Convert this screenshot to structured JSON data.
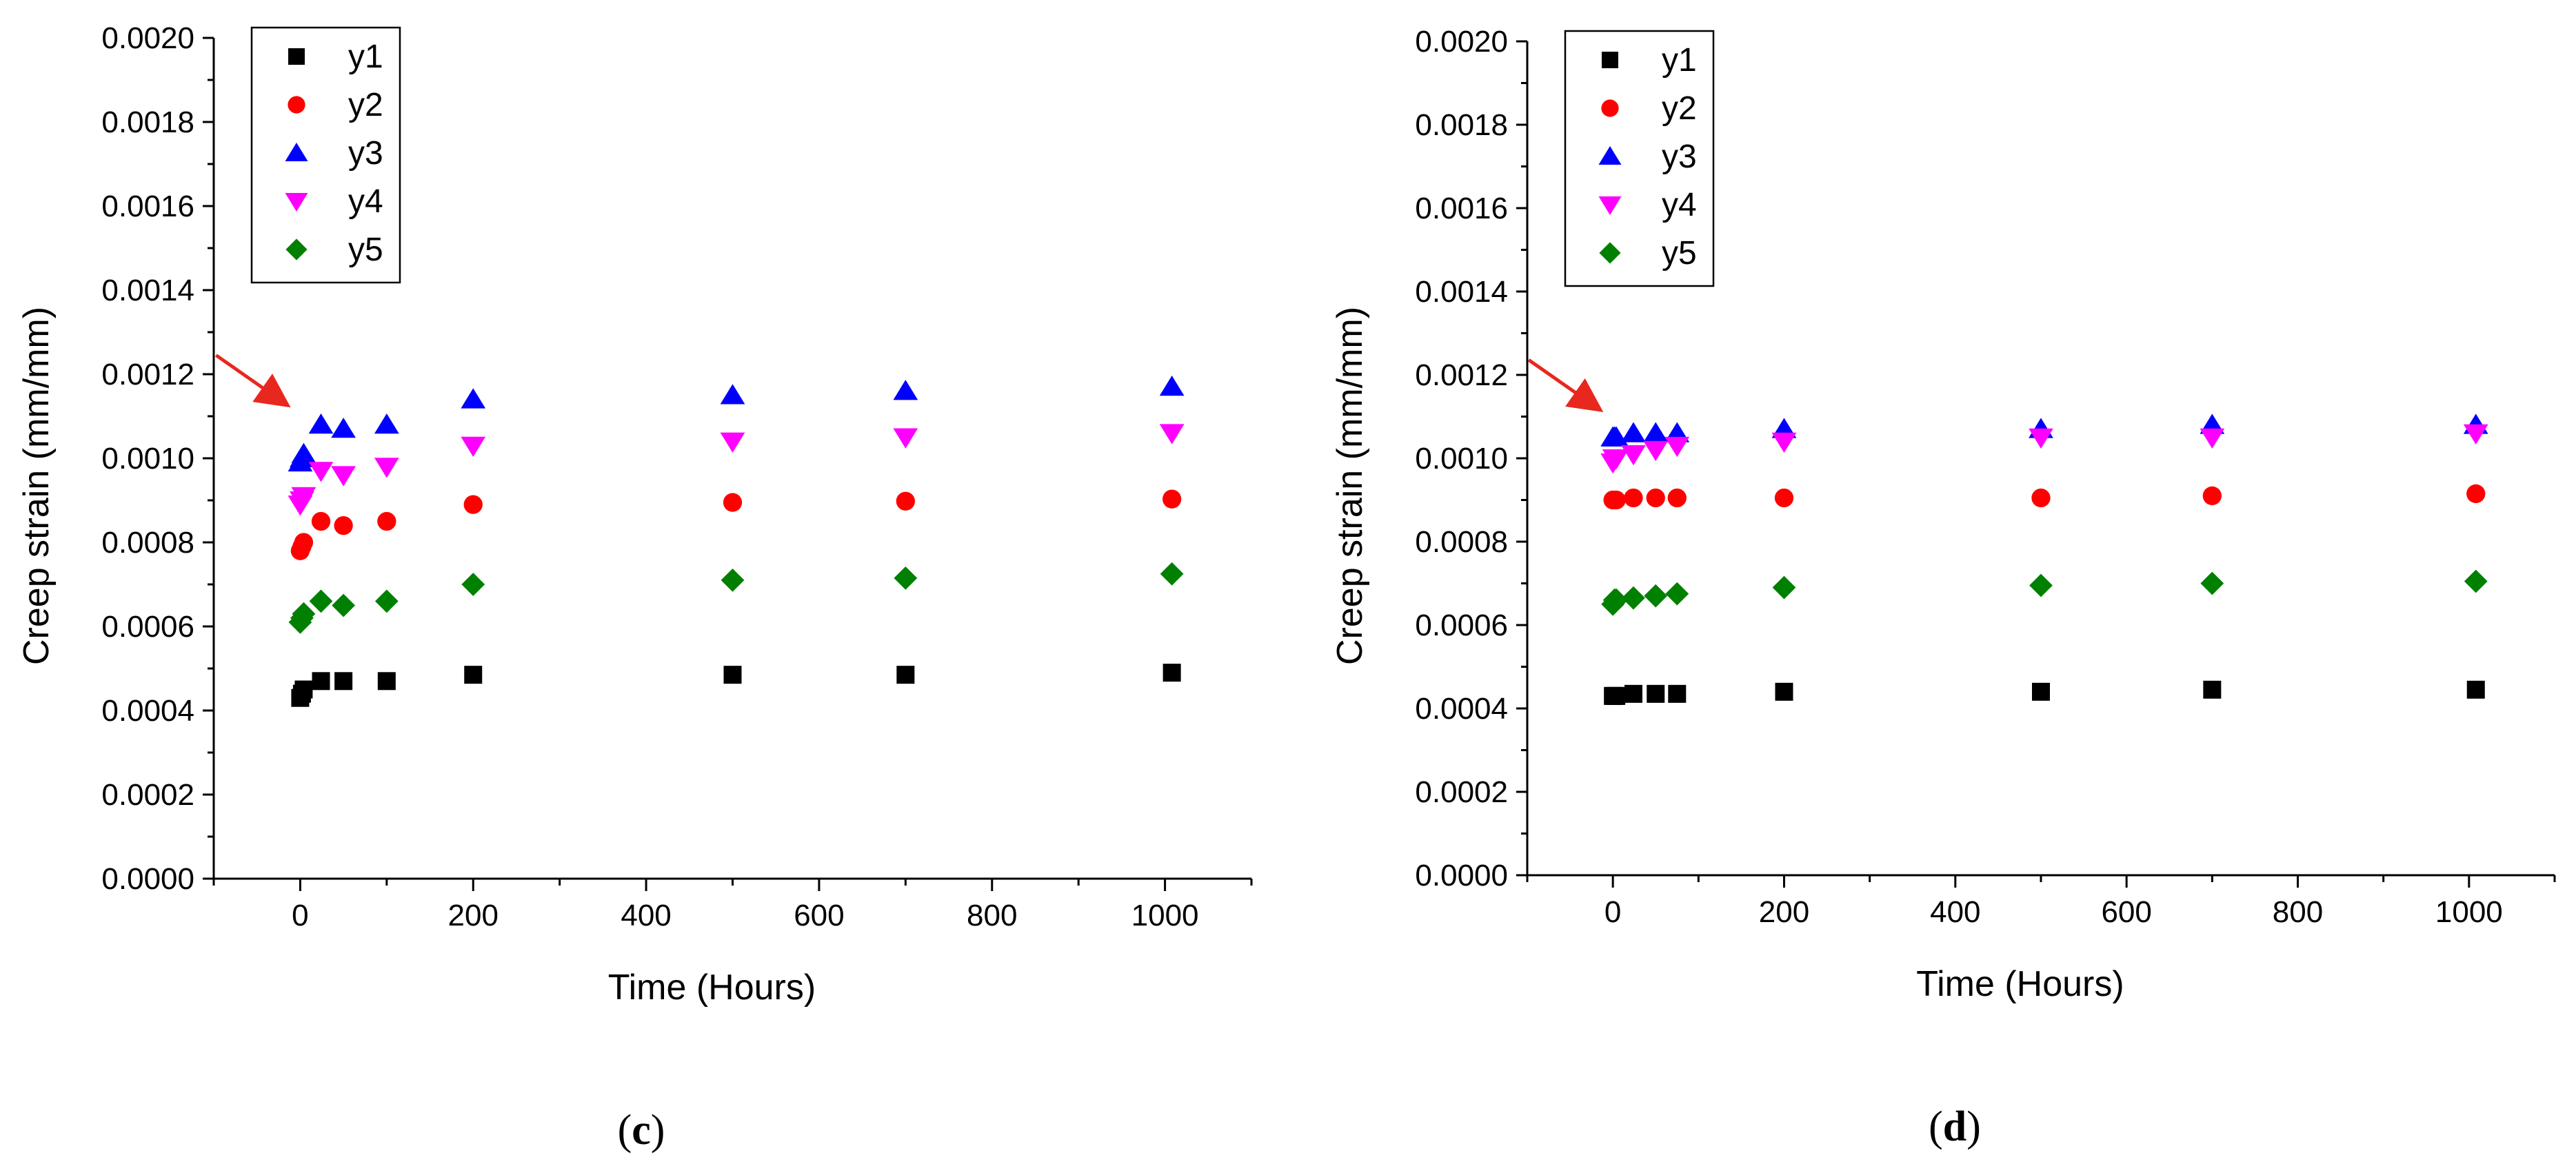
{
  "colors": {
    "y1": "#000000",
    "y2": "#ff0000",
    "y3": "#0000ff",
    "y4": "#ff00ff",
    "y5": "#008000",
    "arrow": "#e8281e"
  },
  "chart_data": [
    {
      "panel_label": "c",
      "type": "scatter",
      "xlabel": "Time (Hours)",
      "ylabel": "Creep strain (mm/mm)",
      "xlim": [
        -100,
        1100
      ],
      "ylim": [
        0,
        0.002
      ],
      "xticks": [
        0,
        200,
        400,
        600,
        800,
        1000
      ],
      "xtick_labels": [
        "0",
        "200",
        "400",
        "600",
        "800",
        "1000"
      ],
      "yticks": [
        0,
        0.0002,
        0.0004,
        0.0006,
        0.0008,
        0.001,
        0.0012,
        0.0014,
        0.0016,
        0.0018,
        0.002
      ],
      "ytick_labels": [
        "0.0000",
        "0.0002",
        "0.0004",
        "0.0006",
        "0.0008",
        "0.0010",
        "0.0012",
        "0.0014",
        "0.0016",
        "0.0018",
        "0.0020"
      ],
      "legend": [
        "y1",
        "y2",
        "y3",
        "y4",
        "y5"
      ],
      "legend_position": "top-left",
      "annotation": {
        "type": "arrow",
        "points_to": [
          0,
          0.00115
        ]
      },
      "series": [
        {
          "name": "y1",
          "marker": "square",
          "x": [
            0,
            2,
            4,
            24,
            50,
            100,
            200,
            500,
            700,
            1008
          ],
          "y": [
            0.00043,
            0.00044,
            0.00045,
            0.00047,
            0.00047,
            0.00047,
            0.000485,
            0.000485,
            0.000485,
            0.00049
          ]
        },
        {
          "name": "y2",
          "marker": "circle",
          "x": [
            0,
            2,
            4,
            24,
            50,
            100,
            200,
            500,
            700,
            1008
          ],
          "y": [
            0.00078,
            0.00079,
            0.0008,
            0.00085,
            0.00084,
            0.00085,
            0.00089,
            0.000895,
            0.000898,
            0.000903
          ]
        },
        {
          "name": "y3",
          "marker": "triangle-up",
          "x": [
            0,
            2,
            4,
            24,
            50,
            100,
            200,
            500,
            700,
            1008
          ],
          "y": [
            0.00099,
            0.001,
            0.00101,
            0.00108,
            0.00107,
            0.00108,
            0.00114,
            0.00115,
            0.00116,
            0.00117
          ]
        },
        {
          "name": "y4",
          "marker": "triangle-down",
          "x": [
            0,
            2,
            4,
            24,
            50,
            100,
            200,
            500,
            700,
            1008
          ],
          "y": [
            0.00089,
            0.0009,
            0.00091,
            0.00097,
            0.00096,
            0.00098,
            0.00103,
            0.00104,
            0.00105,
            0.00106
          ]
        },
        {
          "name": "y5",
          "marker": "diamond",
          "x": [
            0,
            2,
            4,
            24,
            50,
            100,
            200,
            500,
            700,
            1008
          ],
          "y": [
            0.00061,
            0.00062,
            0.00063,
            0.00066,
            0.00065,
            0.00066,
            0.0007,
            0.00071,
            0.000715,
            0.000725
          ]
        }
      ]
    },
    {
      "panel_label": "d",
      "type": "scatter",
      "xlabel": "Time (Hours)",
      "ylabel": "Creep strain (mm/mm)",
      "xlim": [
        -100,
        1100
      ],
      "ylim": [
        0,
        0.002
      ],
      "xticks": [
        0,
        200,
        400,
        600,
        800,
        1000
      ],
      "xtick_labels": [
        "0",
        "200",
        "400",
        "600",
        "800",
        "1000"
      ],
      "yticks": [
        0,
        0.0002,
        0.0004,
        0.0006,
        0.0008,
        0.001,
        0.0012,
        0.0014,
        0.0016,
        0.0018,
        0.002
      ],
      "ytick_labels": [
        "0.0000",
        "0.0002",
        "0.0004",
        "0.0006",
        "0.0008",
        "0.0010",
        "0.0012",
        "0.0014",
        "0.0016",
        "0.0018",
        "0.0020"
      ],
      "legend": [
        "y1",
        "y2",
        "y3",
        "y4",
        "y5"
      ],
      "legend_position": "top-left",
      "annotation": {
        "type": "arrow",
        "points_to": [
          0,
          0.00114
        ]
      },
      "series": [
        {
          "name": "y1",
          "marker": "square",
          "x": [
            0,
            2,
            4,
            24,
            50,
            75,
            200,
            500,
            700,
            1008
          ],
          "y": [
            0.00043,
            0.00043,
            0.00043,
            0.000435,
            0.000435,
            0.000435,
            0.00044,
            0.00044,
            0.000445,
            0.000445
          ]
        },
        {
          "name": "y2",
          "marker": "circle",
          "x": [
            0,
            2,
            4,
            24,
            50,
            75,
            200,
            500,
            700,
            1008
          ],
          "y": [
            0.0009,
            0.0009,
            0.0009,
            0.000905,
            0.000905,
            0.000905,
            0.000905,
            0.000905,
            0.00091,
            0.000915
          ]
        },
        {
          "name": "y3",
          "marker": "triangle-up",
          "x": [
            0,
            2,
            4,
            24,
            50,
            75,
            200,
            500,
            700,
            1008
          ],
          "y": [
            0.00105,
            0.00105,
            0.00105,
            0.00106,
            0.00106,
            0.00106,
            0.00107,
            0.00107,
            0.00108,
            0.00108
          ]
        },
        {
          "name": "y4",
          "marker": "triangle-down",
          "x": [
            0,
            2,
            4,
            24,
            50,
            75,
            200,
            500,
            700,
            1008
          ],
          "y": [
            0.00099,
            0.001,
            0.001,
            0.00101,
            0.00102,
            0.00103,
            0.00104,
            0.00105,
            0.00105,
            0.00106
          ]
        },
        {
          "name": "y5",
          "marker": "diamond",
          "x": [
            0,
            2,
            4,
            24,
            50,
            75,
            200,
            500,
            700,
            1008
          ],
          "y": [
            0.00065,
            0.00066,
            0.00066,
            0.000665,
            0.00067,
            0.000675,
            0.00069,
            0.000695,
            0.0007,
            0.000705
          ]
        }
      ]
    }
  ]
}
